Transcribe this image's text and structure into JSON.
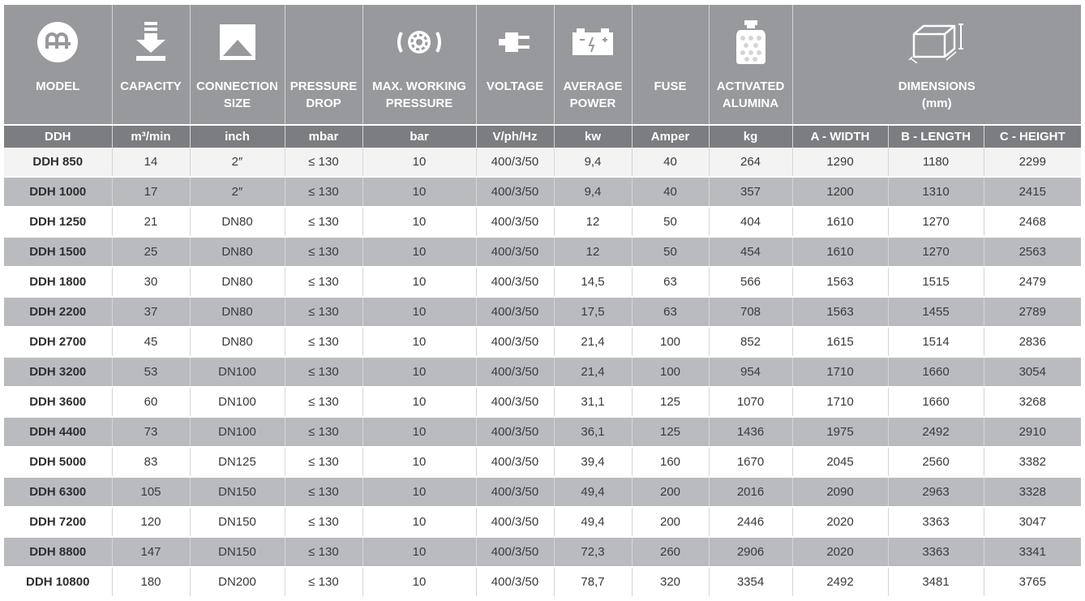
{
  "headers": [
    {
      "label": "MODEL",
      "icon": "logo-icon"
    },
    {
      "label": "CAPACITY",
      "icon": "download-arrow-icon"
    },
    {
      "label": "CONNECTION\nSIZE",
      "icon": "chevron-up-icon"
    },
    {
      "label": "PRESSURE\nDROP",
      "icon": ""
    },
    {
      "label": "MAX. WORKING\nPRESSURE",
      "icon": "gear-icon"
    },
    {
      "label": "VOLTAGE",
      "icon": "plug-icon"
    },
    {
      "label": "AVERAGE\nPOWER",
      "icon": "battery-icon"
    },
    {
      "label": "FUSE",
      "icon": ""
    },
    {
      "label": "ACTIVATED\nALUMINA",
      "icon": "weight-icon"
    },
    {
      "label": "DIMENSIONS\n(mm)",
      "icon": "box-icon"
    }
  ],
  "units": [
    "DDH",
    "m³/min",
    "inch",
    "mbar",
    "bar",
    "V/ph/Hz",
    "kw",
    "Amper",
    "kg",
    "A - WIDTH",
    "B - LENGTH",
    "C - HEIGHT"
  ],
  "rows": [
    [
      "DDH 850",
      "14",
      "2″",
      "≤ 130",
      "10",
      "400/3/50",
      "9,4",
      "40",
      "264",
      "1290",
      "1180",
      "2299"
    ],
    [
      "DDH 1000",
      "17",
      "2″",
      "≤ 130",
      "10",
      "400/3/50",
      "9,4",
      "40",
      "357",
      "1200",
      "1310",
      "2415"
    ],
    [
      "DDH 1250",
      "21",
      "DN80",
      "≤ 130",
      "10",
      "400/3/50",
      "12",
      "50",
      "404",
      "1610",
      "1270",
      "2468"
    ],
    [
      "DDH 1500",
      "25",
      "DN80",
      "≤ 130",
      "10",
      "400/3/50",
      "12",
      "50",
      "454",
      "1610",
      "1270",
      "2563"
    ],
    [
      "DDH 1800",
      "30",
      "DN80",
      "≤ 130",
      "10",
      "400/3/50",
      "14,5",
      "63",
      "566",
      "1563",
      "1515",
      "2479"
    ],
    [
      "DDH 2200",
      "37",
      "DN80",
      "≤ 130",
      "10",
      "400/3/50",
      "17,5",
      "63",
      "708",
      "1563",
      "1455",
      "2789"
    ],
    [
      "DDH 2700",
      "45",
      "DN80",
      "≤ 130",
      "10",
      "400/3/50",
      "21,4",
      "100",
      "852",
      "1615",
      "1514",
      "2836"
    ],
    [
      "DDH 3200",
      "53",
      "DN100",
      "≤ 130",
      "10",
      "400/3/50",
      "21,4",
      "100",
      "954",
      "1710",
      "1660",
      "3054"
    ],
    [
      "DDH 3600",
      "60",
      "DN100",
      "≤ 130",
      "10",
      "400/3/50",
      "31,1",
      "125",
      "1070",
      "1710",
      "1660",
      "3268"
    ],
    [
      "DDH 4400",
      "73",
      "DN100",
      "≤ 130",
      "10",
      "400/3/50",
      "36,1",
      "125",
      "1436",
      "1975",
      "2492",
      "2910"
    ],
    [
      "DDH 5000",
      "83",
      "DN125",
      "≤ 130",
      "10",
      "400/3/50",
      "39,4",
      "160",
      "1670",
      "2045",
      "2560",
      "3382"
    ],
    [
      "DDH 6300",
      "105",
      "DN150",
      "≤ 130",
      "10",
      "400/3/50",
      "49,4",
      "200",
      "2016",
      "2090",
      "2963",
      "3328"
    ],
    [
      "DDH 7200",
      "120",
      "DN150",
      "≤ 130",
      "10",
      "400/3/50",
      "49,4",
      "200",
      "2446",
      "2020",
      "3363",
      "3047"
    ],
    [
      "DDH 8800",
      "147",
      "DN150",
      "≤ 130",
      "10",
      "400/3/50",
      "72,3",
      "260",
      "2906",
      "2020",
      "3363",
      "3341"
    ],
    [
      "DDH 10800",
      "180",
      "DN200",
      "≤ 130",
      "10",
      "400/3/50",
      "78,7",
      "320",
      "3354",
      "2492",
      "3481",
      "3765"
    ]
  ]
}
